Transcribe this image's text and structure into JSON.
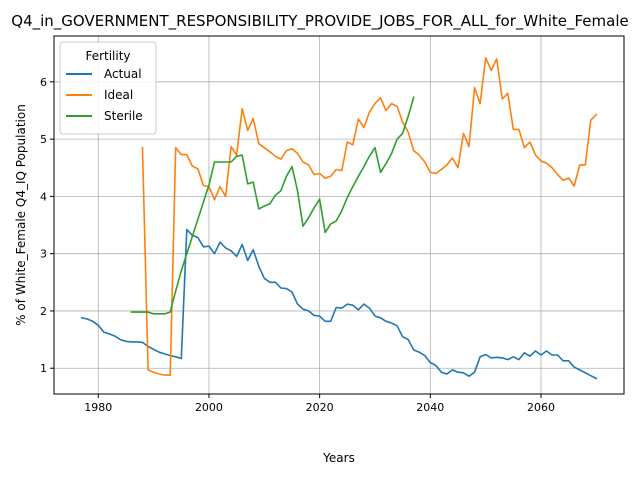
{
  "chart_data": {
    "type": "line",
    "title": "Q4_in_GOVERNMENT_RESPONSIBILITY_PROVIDE_JOBS_FOR_ALL_for_White_Female",
    "xlabel": "Years",
    "ylabel": "% of White_Female Q4_IQ Population",
    "xlim": [
      1972,
      2075
    ],
    "ylim": [
      0.55,
      6.8
    ],
    "x_ticks": [
      1980,
      2000,
      2020,
      2040,
      2060
    ],
    "y_ticks": [
      1,
      2,
      3,
      4,
      5,
      6
    ],
    "grid": true,
    "legend": {
      "title": "Fertility",
      "position": "top-left"
    },
    "series": [
      {
        "name": "Actual",
        "color": "#1f77b4",
        "x": [
          1977,
          1978,
          1979,
          1980,
          1981,
          1982,
          1983,
          1984,
          1985,
          1986,
          1987,
          1988,
          1989,
          1990,
          1991,
          1992,
          1993,
          1994,
          1995,
          1996,
          1997,
          1998,
          1999,
          2000,
          2001,
          2002,
          2003,
          2004,
          2005,
          2006,
          2007,
          2008,
          2009,
          2010,
          2011,
          2012,
          2013,
          2014,
          2015,
          2016,
          2017,
          2018,
          2019,
          2020,
          2021,
          2022,
          2023,
          2024,
          2025,
          2026,
          2027,
          2028,
          2029,
          2030,
          2031,
          2032,
          2033,
          2034,
          2035,
          2036,
          2037,
          2038,
          2039,
          2040,
          2041,
          2042,
          2043,
          2044,
          2045,
          2046,
          2047,
          2048,
          2049,
          2050,
          2051,
          2052,
          2053,
          2054,
          2055,
          2056,
          2057,
          2058,
          2059,
          2060,
          2061,
          2062,
          2063,
          2064,
          2065,
          2066,
          2067,
          2068,
          2069,
          2070
        ],
        "values": [
          1.88,
          1.86,
          1.82,
          1.75,
          1.63,
          1.6,
          1.56,
          1.5,
          1.47,
          1.46,
          1.46,
          1.45,
          1.38,
          1.33,
          1.28,
          1.25,
          1.22,
          1.2,
          1.17,
          3.42,
          3.32,
          3.28,
          3.12,
          3.13,
          3.0,
          3.2,
          3.1,
          3.05,
          2.95,
          3.16,
          2.88,
          3.07,
          2.78,
          2.57,
          2.5,
          2.5,
          2.4,
          2.39,
          2.33,
          2.12,
          2.03,
          2.0,
          1.92,
          1.91,
          1.82,
          1.82,
          2.06,
          2.05,
          2.12,
          2.1,
          2.02,
          2.12,
          2.05,
          1.91,
          1.88,
          1.82,
          1.79,
          1.74,
          1.55,
          1.5,
          1.32,
          1.28,
          1.22,
          1.1,
          1.05,
          0.93,
          0.9,
          0.97,
          0.93,
          0.92,
          0.86,
          0.93,
          1.2,
          1.24,
          1.18,
          1.19,
          1.18,
          1.15,
          1.2,
          1.15,
          1.27,
          1.21,
          1.3,
          1.23,
          1.3,
          1.23,
          1.23,
          1.13,
          1.13,
          1.02,
          0.97,
          0.92,
          0.87,
          0.82
        ]
      },
      {
        "name": "Ideal",
        "color": "#ff7f0e",
        "x": [
          1988,
          1989,
          1990,
          1991,
          1992,
          1993,
          1994,
          1995,
          1996,
          1997,
          1998,
          1999,
          2000,
          2001,
          2002,
          2003,
          2004,
          2005,
          2006,
          2007,
          2008,
          2009,
          2010,
          2011,
          2012,
          2013,
          2014,
          2015,
          2016,
          2017,
          2018,
          2019,
          2020,
          2021,
          2022,
          2023,
          2024,
          2025,
          2026,
          2027,
          2028,
          2029,
          2030,
          2031,
          2032,
          2033,
          2034,
          2035,
          2036,
          2037,
          2038,
          2039,
          2040,
          2041,
          2042,
          2043,
          2044,
          2045,
          2046,
          2047,
          2048,
          2049,
          2050,
          2051,
          2052,
          2053,
          2054,
          2055,
          2056,
          2057,
          2058,
          2059,
          2060,
          2061,
          2062,
          2063,
          2064,
          2065,
          2066,
          2067,
          2068,
          2069,
          2070
        ],
        "values": [
          4.85,
          0.97,
          0.93,
          0.9,
          0.88,
          0.88,
          4.85,
          4.73,
          4.73,
          4.53,
          4.48,
          4.19,
          4.17,
          3.94,
          4.17,
          4.0,
          4.87,
          4.72,
          5.53,
          5.15,
          5.36,
          4.92,
          4.85,
          4.78,
          4.7,
          4.65,
          4.8,
          4.83,
          4.75,
          4.6,
          4.55,
          4.38,
          4.4,
          4.32,
          4.35,
          4.47,
          4.45,
          4.95,
          4.9,
          5.35,
          5.2,
          5.47,
          5.62,
          5.72,
          5.5,
          5.62,
          5.57,
          5.3,
          5.12,
          4.8,
          4.72,
          4.6,
          4.42,
          4.4,
          4.47,
          4.55,
          4.67,
          4.5,
          5.1,
          4.87,
          5.9,
          5.62,
          6.42,
          6.2,
          6.4,
          5.7,
          5.8,
          5.17,
          5.17,
          4.85,
          4.95,
          4.72,
          4.62,
          4.58,
          4.5,
          4.38,
          4.28,
          4.32,
          4.18,
          4.55,
          4.55,
          5.33,
          5.43
        ]
      },
      {
        "name": "Sterile",
        "color": "#2ca02c",
        "x": [
          1986,
          1987,
          1988,
          1989,
          1990,
          1991,
          1992,
          1993,
          1994,
          1995,
          1996,
          1997,
          1998,
          1999,
          2000,
          2001,
          2002,
          2003,
          2004,
          2005,
          2006,
          2007,
          2008,
          2009,
          2010,
          2011,
          2012,
          2013,
          2014,
          2015,
          2016,
          2017,
          2018,
          2019,
          2020,
          2021,
          2022,
          2023,
          2024,
          2025,
          2026,
          2027,
          2028,
          2029,
          2030,
          2031,
          2032,
          2033,
          2034,
          2035,
          2036,
          2037
        ],
        "values": [
          1.98,
          1.98,
          1.98,
          1.98,
          1.95,
          1.95,
          1.95,
          1.98,
          2.35,
          2.7,
          3.0,
          3.3,
          3.6,
          3.9,
          4.2,
          4.6,
          4.6,
          4.6,
          4.6,
          4.7,
          4.72,
          4.22,
          4.25,
          3.78,
          3.83,
          3.87,
          4.02,
          4.1,
          4.35,
          4.52,
          4.1,
          3.48,
          3.63,
          3.8,
          3.95,
          3.37,
          3.52,
          3.57,
          3.75,
          3.98,
          4.17,
          4.35,
          4.52,
          4.7,
          4.85,
          4.42,
          4.57,
          4.75,
          5.0,
          5.1,
          5.4,
          5.73
        ]
      }
    ]
  }
}
